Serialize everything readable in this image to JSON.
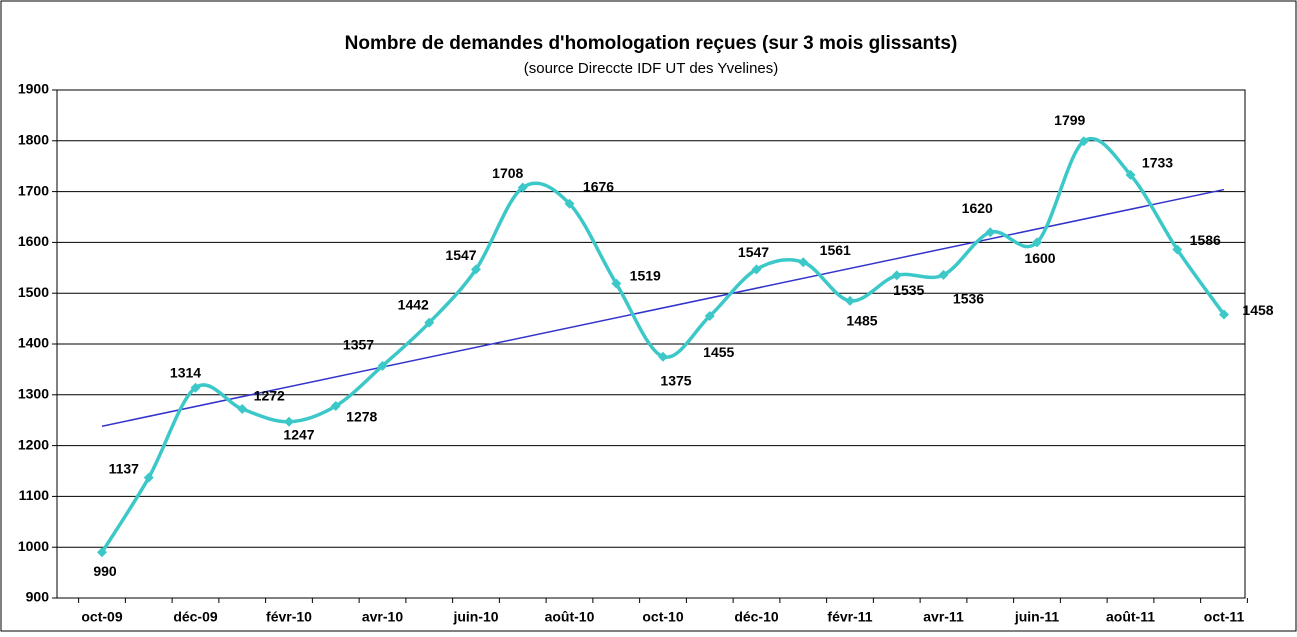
{
  "chart_data": {
    "type": "line",
    "title": "Nombre de demandes d'homologation reçues (sur 3 mois glissants)",
    "subtitle": "(source Direccte IDF UT des Yvelines)",
    "categories": [
      "oct-09",
      null,
      "déc-09",
      null,
      "févr-10",
      null,
      "avr-10",
      null,
      "juin-10",
      null,
      "août-10",
      null,
      "oct-10",
      null,
      "déc-10",
      null,
      "févr-11",
      null,
      "avr-11",
      null,
      "juin-11",
      null,
      "août-11",
      null,
      "oct-11"
    ],
    "values": [
      990,
      1137,
      1314,
      1272,
      1247,
      1278,
      1357,
      1442,
      1547,
      1708,
      1676,
      1519,
      1375,
      1455,
      1547,
      1561,
      1485,
      1535,
      1536,
      1620,
      1600,
      1799,
      1733,
      1586,
      1458
    ],
    "color": "#3cc8c8",
    "trendline_color": "#3333cc",
    "ylim": [
      900,
      1900
    ],
    "yticks": [
      900,
      1000,
      1100,
      1200,
      1300,
      1400,
      1500,
      1600,
      1700,
      1800,
      1900
    ],
    "grid": true
  }
}
